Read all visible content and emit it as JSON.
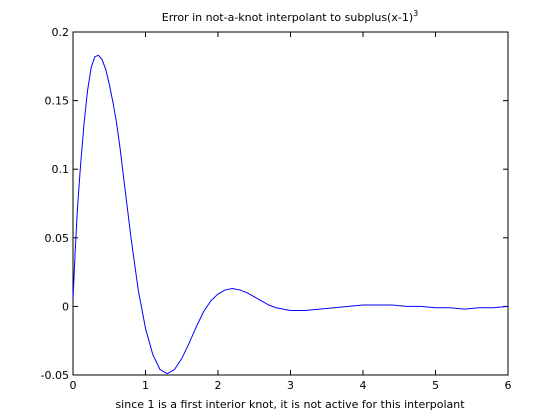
{
  "chart_data": {
    "type": "line",
    "title": "Error in not-a-knot interpolant to subplus(x-1)",
    "title_superscript": "3",
    "xlabel": "since 1 is a first interior knot, it is not active for this interpolant",
    "ylabel": "",
    "xlim": [
      0,
      6
    ],
    "ylim": [
      -0.05,
      0.2
    ],
    "grid": false,
    "x_ticks": [
      {
        "value": 0,
        "label": "0"
      },
      {
        "value": 1,
        "label": "1"
      },
      {
        "value": 2,
        "label": "2"
      },
      {
        "value": 3,
        "label": "3"
      },
      {
        "value": 4,
        "label": "4"
      },
      {
        "value": 5,
        "label": "5"
      },
      {
        "value": 6,
        "label": "6"
      }
    ],
    "y_ticks": [
      {
        "value": -0.05,
        "label": "-0.05"
      },
      {
        "value": 0,
        "label": "0"
      },
      {
        "value": 0.05,
        "label": "0.05"
      },
      {
        "value": 0.1,
        "label": "0.1"
      },
      {
        "value": 0.15,
        "label": "0.15"
      },
      {
        "value": 0.2,
        "label": "0.2"
      }
    ],
    "series": [
      {
        "color": "#0000ff",
        "x": [
          0,
          0.03,
          0.06,
          0.1,
          0.15,
          0.2,
          0.25,
          0.3,
          0.35,
          0.4,
          0.45,
          0.5,
          0.55,
          0.6,
          0.65,
          0.7,
          0.8,
          0.9,
          1.0,
          1.1,
          1.2,
          1.3,
          1.4,
          1.5,
          1.6,
          1.7,
          1.8,
          1.9,
          2.0,
          2.1,
          2.2,
          2.3,
          2.4,
          2.5,
          2.6,
          2.7,
          2.8,
          2.9,
          3.0,
          3.2,
          3.4,
          3.6,
          3.8,
          4.0,
          4.2,
          4.4,
          4.6,
          4.8,
          5.0,
          5.2,
          5.4,
          5.6,
          5.8,
          6.0
        ],
        "y": [
          0.005,
          0.04,
          0.07,
          0.1,
          0.132,
          0.157,
          0.174,
          0.182,
          0.183,
          0.18,
          0.173,
          0.162,
          0.149,
          0.134,
          0.115,
          0.093,
          0.05,
          0.012,
          -0.016,
          -0.035,
          -0.046,
          -0.049,
          -0.046,
          -0.038,
          -0.027,
          -0.015,
          -0.004,
          0.004,
          0.009,
          0.012,
          0.013,
          0.012,
          0.01,
          0.007,
          0.004,
          0.001,
          -0.001,
          -0.002,
          -0.003,
          -0.003,
          -0.002,
          -0.001,
          0.0,
          0.001,
          0.001,
          0.001,
          0.0,
          0.0,
          -0.001,
          -0.001,
          -0.002,
          -0.001,
          -0.001,
          0.0
        ]
      }
    ]
  }
}
